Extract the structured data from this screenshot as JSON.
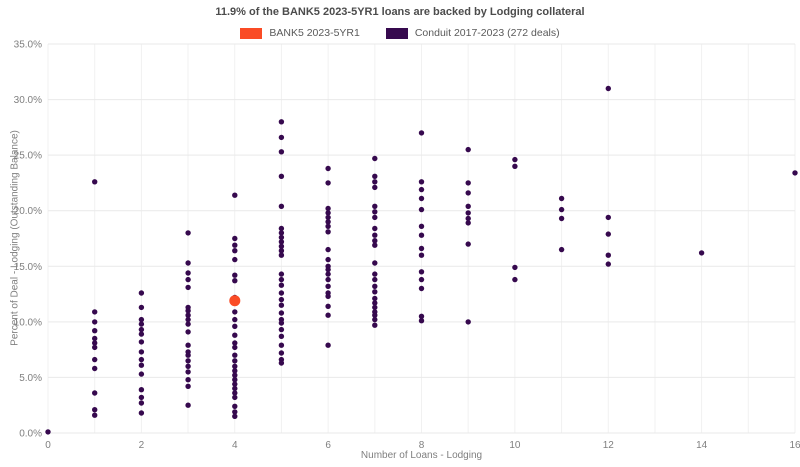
{
  "header": {
    "title": "11.9% of the BANK5 2023-5YR1 loans are backed by Lodging collateral"
  },
  "chart_data": {
    "type": "scatter",
    "title": "11.9% of the BANK5 2023-5YR1 loans are backed by Lodging collateral",
    "xlabel": "Number of Loans - Lodging",
    "ylabel": "Percent of Deal - Lodging (Outstanding Balance)",
    "xlim": [
      0,
      16
    ],
    "ylim": [
      0,
      35
    ],
    "x_ticks": [
      0,
      2,
      4,
      6,
      8,
      10,
      12,
      14,
      16
    ],
    "x_grid_step": 1,
    "y_ticks": [
      0,
      5,
      10,
      15,
      20,
      25,
      30,
      35
    ],
    "y_tick_labels": [
      "0.0%",
      "5.0%",
      "10.0%",
      "15.0%",
      "20.0%",
      "25.0%",
      "30.0%",
      "35.0%"
    ],
    "grid": true,
    "legend_position": "top-center",
    "colors": {
      "bank5": "#fa4b25",
      "conduit": "#36094e",
      "h_gridline": "#e9e9e9",
      "v_gridline": "#f1f1f1",
      "tick_text": "#7f7f7f",
      "title_text": "#4c4c4c"
    },
    "legend": [
      {
        "label": "BANK5 2023-5YR1",
        "color": "#fa4b25"
      },
      {
        "label": "Conduit 2017-2023 (272 deals)",
        "color": "#36094e"
      }
    ],
    "series": [
      {
        "name": "Conduit 2017-2023 (272 deals)",
        "color": "#36094e",
        "marker_size": 5.4,
        "points": [
          [
            0,
            0.1
          ],
          [
            1,
            22.6
          ],
          [
            1,
            10.9
          ],
          [
            1,
            10.0
          ],
          [
            1,
            9.2
          ],
          [
            1,
            8.5
          ],
          [
            1,
            8.1
          ],
          [
            1,
            7.7
          ],
          [
            1,
            6.6
          ],
          [
            1,
            5.8
          ],
          [
            1,
            3.6
          ],
          [
            1,
            2.1
          ],
          [
            1,
            1.6
          ],
          [
            2,
            12.6
          ],
          [
            2,
            11.3
          ],
          [
            2,
            10.2
          ],
          [
            2,
            9.8
          ],
          [
            2,
            9.3
          ],
          [
            2,
            8.9
          ],
          [
            2,
            8.2
          ],
          [
            2,
            7.3
          ],
          [
            2,
            6.6
          ],
          [
            2,
            6.1
          ],
          [
            2,
            5.3
          ],
          [
            2,
            3.9
          ],
          [
            2,
            3.2
          ],
          [
            2,
            2.7
          ],
          [
            2,
            1.8
          ],
          [
            3,
            18.0
          ],
          [
            3,
            15.3
          ],
          [
            3,
            14.4
          ],
          [
            3,
            13.8
          ],
          [
            3,
            13.1
          ],
          [
            3,
            11.3
          ],
          [
            3,
            11.0
          ],
          [
            3,
            10.6
          ],
          [
            3,
            10.2
          ],
          [
            3,
            9.8
          ],
          [
            3,
            9.1
          ],
          [
            3,
            7.9
          ],
          [
            3,
            7.3
          ],
          [
            3,
            7.0
          ],
          [
            3,
            6.5
          ],
          [
            3,
            6.0
          ],
          [
            3,
            5.5
          ],
          [
            3,
            4.8
          ],
          [
            3,
            4.2
          ],
          [
            3,
            2.5
          ],
          [
            4,
            21.4
          ],
          [
            4,
            17.5
          ],
          [
            4,
            16.9
          ],
          [
            4,
            16.4
          ],
          [
            4,
            15.6
          ],
          [
            4,
            14.2
          ],
          [
            4,
            13.7
          ],
          [
            4,
            12.2
          ],
          [
            4,
            10.9
          ],
          [
            4,
            10.2
          ],
          [
            4,
            9.6
          ],
          [
            4,
            8.8
          ],
          [
            4,
            8.1
          ],
          [
            4,
            7.7
          ],
          [
            4,
            7.0
          ],
          [
            4,
            6.5
          ],
          [
            4,
            6.0
          ],
          [
            4,
            5.6
          ],
          [
            4,
            5.2
          ],
          [
            4,
            4.8
          ],
          [
            4,
            4.4
          ],
          [
            4,
            4.0
          ],
          [
            4,
            3.6
          ],
          [
            4,
            3.2
          ],
          [
            4,
            2.4
          ],
          [
            4,
            1.9
          ],
          [
            4,
            1.5
          ],
          [
            5,
            28.0
          ],
          [
            5,
            26.6
          ],
          [
            5,
            25.3
          ],
          [
            5,
            23.1
          ],
          [
            5,
            20.4
          ],
          [
            5,
            18.4
          ],
          [
            5,
            18.0
          ],
          [
            5,
            17.6
          ],
          [
            5,
            17.2
          ],
          [
            5,
            16.8
          ],
          [
            5,
            16.4
          ],
          [
            5,
            16.0
          ],
          [
            5,
            14.3
          ],
          [
            5,
            13.8
          ],
          [
            5,
            13.3
          ],
          [
            5,
            12.6
          ],
          [
            5,
            12.0
          ],
          [
            5,
            11.5
          ],
          [
            5,
            10.8
          ],
          [
            5,
            10.2
          ],
          [
            5,
            9.9
          ],
          [
            5,
            9.3
          ],
          [
            5,
            8.7
          ],
          [
            5,
            7.9
          ],
          [
            5,
            7.2
          ],
          [
            5,
            6.6
          ],
          [
            5,
            6.3
          ],
          [
            6,
            23.8
          ],
          [
            6,
            22.5
          ],
          [
            6,
            20.2
          ],
          [
            6,
            19.8
          ],
          [
            6,
            19.4
          ],
          [
            6,
            19.0
          ],
          [
            6,
            18.6
          ],
          [
            6,
            18.1
          ],
          [
            6,
            16.5
          ],
          [
            6,
            15.6
          ],
          [
            6,
            15.0
          ],
          [
            6,
            14.7
          ],
          [
            6,
            14.3
          ],
          [
            6,
            13.8
          ],
          [
            6,
            13.2
          ],
          [
            6,
            12.6
          ],
          [
            6,
            12.3
          ],
          [
            6,
            11.4
          ],
          [
            6,
            10.6
          ],
          [
            6,
            7.9
          ],
          [
            7,
            24.7
          ],
          [
            7,
            23.1
          ],
          [
            7,
            22.6
          ],
          [
            7,
            22.1
          ],
          [
            7,
            20.4
          ],
          [
            7,
            19.9
          ],
          [
            7,
            19.4
          ],
          [
            7,
            18.4
          ],
          [
            7,
            17.8
          ],
          [
            7,
            17.3
          ],
          [
            7,
            16.9
          ],
          [
            7,
            15.3
          ],
          [
            7,
            14.3
          ],
          [
            7,
            13.8
          ],
          [
            7,
            13.2
          ],
          [
            7,
            12.7
          ],
          [
            7,
            12.1
          ],
          [
            7,
            11.7
          ],
          [
            7,
            11.3
          ],
          [
            7,
            10.9
          ],
          [
            7,
            10.6
          ],
          [
            7,
            10.2
          ],
          [
            7,
            9.7
          ],
          [
            8,
            27.0
          ],
          [
            8,
            22.6
          ],
          [
            8,
            21.9
          ],
          [
            8,
            21.1
          ],
          [
            8,
            20.1
          ],
          [
            8,
            18.6
          ],
          [
            8,
            17.8
          ],
          [
            8,
            16.6
          ],
          [
            8,
            16.0
          ],
          [
            8,
            14.5
          ],
          [
            8,
            13.8
          ],
          [
            8,
            13.0
          ],
          [
            8,
            10.5
          ],
          [
            8,
            10.1
          ],
          [
            9,
            25.5
          ],
          [
            9,
            22.5
          ],
          [
            9,
            21.6
          ],
          [
            9,
            20.4
          ],
          [
            9,
            19.8
          ],
          [
            9,
            19.3
          ],
          [
            9,
            18.9
          ],
          [
            9,
            17.0
          ],
          [
            9,
            10.0
          ],
          [
            10,
            24.6
          ],
          [
            10,
            24.0
          ],
          [
            10,
            14.9
          ],
          [
            10,
            13.8
          ],
          [
            11,
            21.1
          ],
          [
            11,
            20.1
          ],
          [
            11,
            19.3
          ],
          [
            11,
            16.5
          ],
          [
            12,
            31.0
          ],
          [
            12,
            19.4
          ],
          [
            12,
            17.9
          ],
          [
            12,
            16.0
          ],
          [
            12,
            15.2
          ],
          [
            14,
            16.2
          ],
          [
            16,
            23.4
          ]
        ]
      },
      {
        "name": "BANK5 2023-5YR1",
        "color": "#fa4b25",
        "marker_size": 11,
        "points": [
          [
            4,
            11.9
          ]
        ]
      }
    ]
  }
}
